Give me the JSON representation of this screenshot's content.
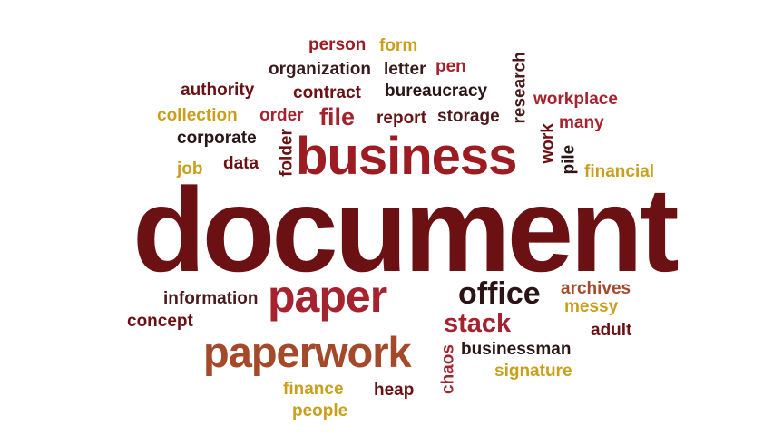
{
  "cloud": {
    "person": "person",
    "form": "form",
    "organization": "organization",
    "letter": "letter",
    "pen": "pen",
    "research": "research",
    "authority": "authority",
    "contract": "contract",
    "bureaucracy": "bureaucracy",
    "workplace": "workplace",
    "collection": "collection",
    "order": "order",
    "file": "file",
    "report": "report",
    "storage": "storage",
    "many": "many",
    "corporate": "corporate",
    "folder": "folder",
    "work": "work",
    "business": "business",
    "pile": "pile",
    "job": "job",
    "data": "data",
    "financial": "financial",
    "document": "document",
    "information": "information",
    "paper": "paper",
    "office": "office",
    "archives": "archives",
    "messy": "messy",
    "concept": "concept",
    "stack": "stack",
    "adult": "adult",
    "paperwork": "paperwork",
    "chaos": "chaos",
    "businessman": "businessman",
    "signature": "signature",
    "finance": "finance",
    "heap": "heap",
    "people": "people"
  },
  "colors": {
    "dark_red": "#6b1113",
    "red": "#9c1c22",
    "crimson": "#a5232e",
    "orange": "#c8761f",
    "gold": "#c9a01e",
    "dark": "#2a1416",
    "brown": "#a44a2a"
  }
}
